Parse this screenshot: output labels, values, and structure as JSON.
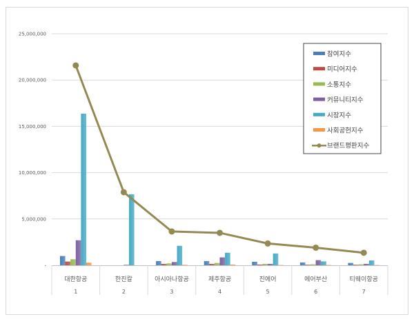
{
  "chart_data": {
    "type": "bar+line",
    "title": "",
    "xlabel": "",
    "ylabel": "",
    "ylim": [
      0,
      25000000
    ],
    "yticks": [
      "-",
      "5,000,000",
      "10,000,000",
      "15,000,000",
      "20,000,000",
      "25,000,000"
    ],
    "grid": true,
    "legend_position": "right-inside",
    "categories": [
      "대한항공",
      "한진칼",
      "아시아나항공",
      "제주항공",
      "진에어",
      "에어부산",
      "티웨이항공"
    ],
    "category_numbers": [
      "1",
      "2",
      "3",
      "4",
      "5",
      "6",
      "7"
    ],
    "series": [
      {
        "name": "참여지수",
        "type": "bar",
        "color": "#4a7ebb",
        "values": [
          1000000,
          0,
          450000,
          450000,
          380000,
          300000,
          250000
        ]
      },
      {
        "name": "미디어지수",
        "type": "bar",
        "color": "#be4b48",
        "values": [
          400000,
          0,
          150000,
          150000,
          80000,
          60000,
          60000
        ]
      },
      {
        "name": "소통지수",
        "type": "bar",
        "color": "#98b954",
        "values": [
          650000,
          0,
          200000,
          250000,
          150000,
          100000,
          100000
        ]
      },
      {
        "name": "커뮤니티지수",
        "type": "bar",
        "color": "#7d60a0",
        "values": [
          2700000,
          50000,
          350000,
          850000,
          150000,
          550000,
          150000
        ]
      },
      {
        "name": "시장지수",
        "type": "bar",
        "color": "#46aac5",
        "values": [
          16370000,
          7660000,
          2100000,
          1350000,
          1270000,
          420000,
          520000
        ]
      },
      {
        "name": "사회공헌지수",
        "type": "bar",
        "color": "#f79646",
        "values": [
          280000,
          0,
          50000,
          80000,
          30000,
          30000,
          30000
        ]
      },
      {
        "name": "브랜드평판지수",
        "type": "line",
        "color": "#938953",
        "values": [
          21580000,
          7890000,
          3650000,
          3500000,
          2350000,
          1900000,
          1350000
        ]
      }
    ]
  }
}
